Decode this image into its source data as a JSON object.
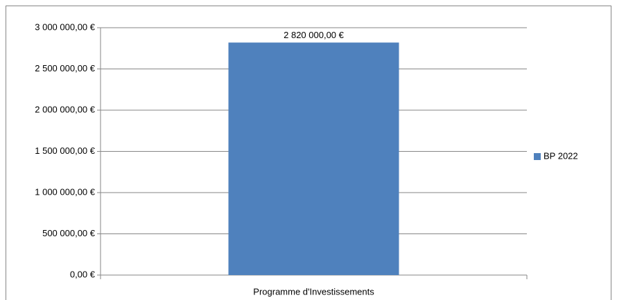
{
  "chart_data": {
    "type": "bar",
    "categories": [
      "Programme d'Investissements"
    ],
    "series": [
      {
        "name": "BP 2022",
        "color": "#4f81bd",
        "values": [
          2820000
        ],
        "value_labels": [
          "2 820 000,00 €"
        ]
      }
    ],
    "ylim": [
      0,
      3000000
    ],
    "yticks": [
      {
        "value": 0,
        "label": "0,00 €"
      },
      {
        "value": 500000,
        "label": "500 000,00 €"
      },
      {
        "value": 1000000,
        "label": "1 000 000,00 €"
      },
      {
        "value": 1500000,
        "label": "1 500 000,00 €"
      },
      {
        "value": 2000000,
        "label": "2 000 000,00 €"
      },
      {
        "value": 2500000,
        "label": "2 500 000,00 €"
      },
      {
        "value": 3000000,
        "label": "3 000 000,00 €"
      }
    ],
    "grid": true,
    "legend": "right"
  }
}
